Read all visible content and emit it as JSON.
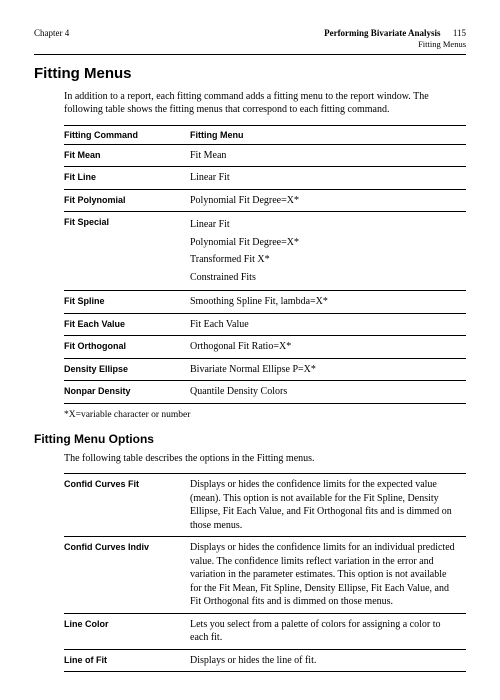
{
  "header": {
    "chapter": "Chapter 4",
    "title": "Performing Bivariate Analysis",
    "pageno": "115",
    "subtitle": "Fitting Menus"
  },
  "section_title": "Fitting Menus",
  "intro": "In addition to a report, each fitting command adds a fitting menu to the report window. The following table shows the fitting menus that correspond to each fitting command.",
  "table1": {
    "headers": [
      "Fitting Command",
      "Fitting Menu"
    ],
    "rows": [
      {
        "cmd": "Fit Mean",
        "menu": [
          "Fit Mean"
        ]
      },
      {
        "cmd": "Fit Line",
        "menu": [
          "Linear Fit"
        ]
      },
      {
        "cmd": "Fit Polynomial",
        "menu": [
          "Polynomial Fit Degree=X*"
        ]
      },
      {
        "cmd": "Fit Special",
        "menu": [
          "Linear Fit",
          "Polynomial Fit Degree=X*",
          "Transformed Fit X*",
          "Constrained Fits"
        ]
      },
      {
        "cmd": "Fit Spline",
        "menu": [
          "Smoothing Spline Fit, lambda=X*"
        ]
      },
      {
        "cmd": "Fit Each Value",
        "menu": [
          "Fit Each Value"
        ]
      },
      {
        "cmd": "Fit Orthogonal",
        "menu": [
          "Orthogonal Fit Ratio=X*"
        ]
      },
      {
        "cmd": "Density Ellipse",
        "menu": [
          "Bivariate Normal Ellipse P=X*"
        ]
      },
      {
        "cmd": "Nonpar Density",
        "menu": [
          "Quantile Density Colors"
        ]
      }
    ]
  },
  "footnote": "*X=variable character or number",
  "subsection_title": "Fitting Menu Options",
  "options_intro": "The following table describes the options in the Fitting menus.",
  "table2": {
    "rows": [
      {
        "cmd": "Confid Curves Fit",
        "desc": "Displays or hides the confidence limits for the expected value (mean). This option is not available for the Fit Spline, Density Ellipse, Fit Each Value, and Fit Orthogonal fits and is dimmed on those menus."
      },
      {
        "cmd": "Confid Curves Indiv",
        "desc": "Displays or hides the confidence limits for an individual predicted value. The confidence limits reflect variation in the error and variation in the parameter estimates. This option is not available for the Fit Mean, Fit Spline, Density Ellipse, Fit Each Value, and Fit Orthogonal fits and is dimmed on those menus."
      },
      {
        "cmd": "Line Color",
        "desc": "Lets you select from a palette of colors for assigning a color to each fit."
      },
      {
        "cmd": "Line of Fit",
        "desc": "Displays or hides the line of fit."
      }
    ]
  }
}
